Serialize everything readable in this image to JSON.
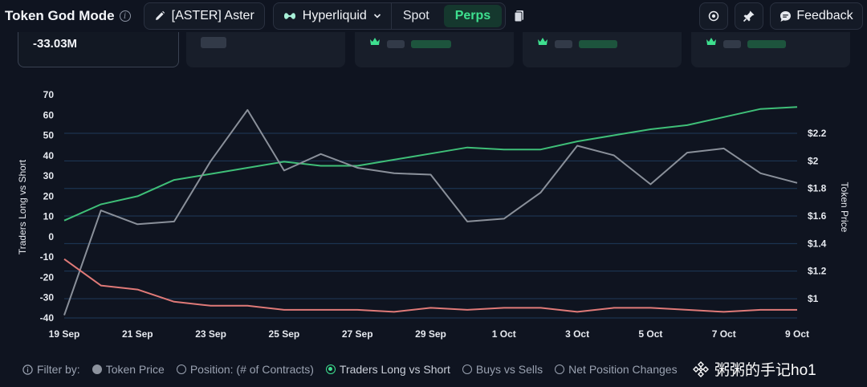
{
  "header": {
    "title": "Token God Mode",
    "token_label": "[ASTER] Aster",
    "venue": "Hyperliquid",
    "tabs": [
      {
        "label": "Spot",
        "active": false
      },
      {
        "label": "Perps",
        "active": true
      }
    ],
    "feedback_label": "Feedback"
  },
  "cards": {
    "main_value": "-33.03M"
  },
  "colors": {
    "background": "#0f1420",
    "accent_green": "#3ee08f",
    "long_short_line": "#3fbf78",
    "price_line": "#8a909a",
    "position_line": "#e07a78",
    "grid": "#1f3a5a"
  },
  "chart_data": {
    "type": "line",
    "x": [
      "19 Sep",
      "20 Sep",
      "21 Sep",
      "22 Sep",
      "23 Sep",
      "24 Sep",
      "25 Sep",
      "26 Sep",
      "27 Sep",
      "28 Sep",
      "29 Sep",
      "30 Sep",
      "1 Oct",
      "2 Oct",
      "3 Oct",
      "4 Oct",
      "5 Oct",
      "6 Oct",
      "7 Oct",
      "8 Oct",
      "9 Oct"
    ],
    "x_tick_labels": [
      "19 Sep",
      "21 Sep",
      "23 Sep",
      "25 Sep",
      "27 Sep",
      "29 Sep",
      "1 Oct",
      "3 Oct",
      "5 Oct",
      "7 Oct",
      "9 Oct"
    ],
    "y_left": {
      "label": "Traders Long vs Short",
      "ticks": [
        70,
        60,
        50,
        40,
        30,
        20,
        10,
        0,
        -10,
        -20,
        -30,
        -40
      ],
      "range": [
        -40,
        70
      ]
    },
    "y_right": {
      "label": "Token Price",
      "ticks": [
        "$2.2",
        "$2",
        "$1.8",
        "$1.6",
        "$1.4",
        "$1.2",
        "$1"
      ],
      "range": [
        0.86,
        2.48
      ]
    },
    "series": [
      {
        "name": "Traders Long vs Short",
        "axis": "left",
        "values": [
          8,
          16,
          20,
          28,
          31,
          34,
          37,
          35,
          35,
          38,
          41,
          44,
          43,
          43,
          47,
          50,
          53,
          55,
          59,
          63,
          64
        ]
      },
      {
        "name": "Token Price",
        "axis": "right",
        "values": [
          0.88,
          1.64,
          1.54,
          1.56,
          2.0,
          2.37,
          1.93,
          2.05,
          1.95,
          1.91,
          1.9,
          1.56,
          1.58,
          1.77,
          2.11,
          2.04,
          1.83,
          2.06,
          2.09,
          1.91,
          1.84
        ]
      },
      {
        "name": "Position: (# of Contracts)",
        "axis": "left",
        "values": [
          -11,
          -24,
          -26,
          -32,
          -34,
          -34,
          -36,
          -36,
          -36,
          -37,
          -35,
          -36,
          -35,
          -35,
          -37,
          -35,
          -35,
          -36,
          -37,
          -36,
          -36
        ]
      }
    ]
  },
  "filters": {
    "prefix": "Filter by:",
    "items": [
      {
        "label": "Token Price",
        "state": "filled"
      },
      {
        "label": "Position: (# of Contracts)",
        "state": "off"
      },
      {
        "label": "Traders Long vs Short",
        "state": "on"
      },
      {
        "label": "Buys vs Sells",
        "state": "off"
      },
      {
        "label": "Net Position Changes",
        "state": "off"
      }
    ]
  },
  "watermark": "粥粥的手记ho1"
}
